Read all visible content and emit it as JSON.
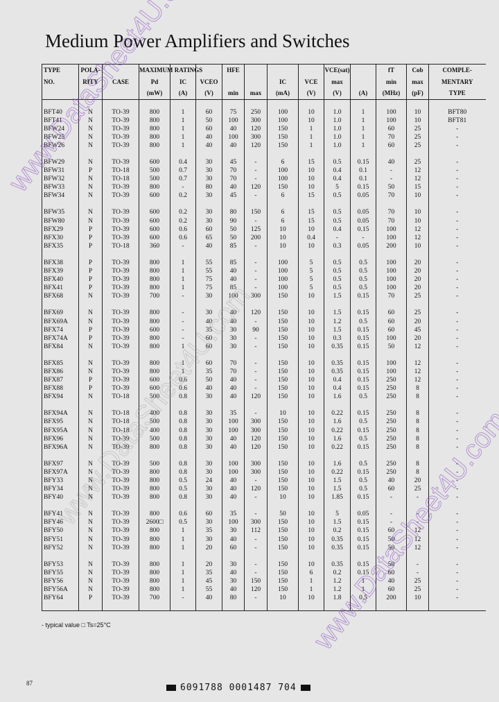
{
  "title": "Medium Power Amplifiers and Switches",
  "header": {
    "row1": [
      "TYPE",
      "POLA-",
      "",
      "MAXIMUM RATINGS",
      "",
      "",
      "HFE",
      "",
      "",
      "",
      "VCE(sat)",
      "",
      "fT",
      "Cob",
      "COMPLE-"
    ],
    "row2": [
      "NO.",
      "RITY",
      "CASE",
      "Pd",
      "IC",
      "VCEO",
      "",
      "",
      "IC",
      "VCE",
      "max",
      "",
      "min",
      "max",
      "MENTARY"
    ],
    "row3": [
      "",
      "",
      "",
      "(mW)",
      "(A)",
      "(V)",
      "min",
      "max",
      "(mA)",
      "(V)",
      "(V)",
      "(A)",
      "(MHz)",
      "(pF)",
      "TYPE"
    ]
  },
  "groups": [
    [
      [
        "BFT40",
        "N",
        "TO-39",
        "800",
        "1",
        "60",
        "75",
        "250",
        "100",
        "10",
        "1.0",
        "1",
        "100",
        "10",
        "BFT80"
      ],
      [
        "BFT41",
        "N",
        "TO-39",
        "800",
        "1",
        "50",
        "100",
        "300",
        "100",
        "10",
        "1.0",
        "1",
        "100",
        "10",
        "BFT81"
      ],
      [
        "BFW24",
        "N",
        "TO-39",
        "800",
        "1",
        "60",
        "40",
        "120",
        "150",
        "1",
        "1.0",
        "1",
        "60",
        "25",
        "-"
      ],
      [
        "BFW25",
        "N",
        "TO-39",
        "800",
        "1",
        "40",
        "100",
        "300",
        "150",
        "1",
        "1.0",
        "1",
        "70",
        "25",
        "-"
      ],
      [
        "BFW26",
        "N",
        "TO-39",
        "800",
        "1",
        "40",
        "40",
        "120",
        "150",
        "1",
        "1.0",
        "1",
        "60",
        "25",
        "-"
      ]
    ],
    [
      [
        "BFW29",
        "N",
        "TO-39",
        "600",
        "0.4",
        "30",
        "45",
        "-",
        "6",
        "15",
        "0.5",
        "0.15",
        "40",
        "25",
        "-"
      ],
      [
        "BFW31",
        "P",
        "TO-18",
        "500",
        "0.7",
        "30",
        "70",
        "-",
        "100",
        "10",
        "0.4",
        "0.1",
        "-",
        "12",
        "-"
      ],
      [
        "BFW32",
        "N",
        "TO-18",
        "500",
        "0.7",
        "30",
        "70",
        "-",
        "100",
        "10",
        "0.4",
        "0.1",
        "-",
        "12",
        "-"
      ],
      [
        "BFW33",
        "N",
        "TO-39",
        "800",
        "-",
        "80",
        "40",
        "120",
        "150",
        "10",
        "5",
        "0.15",
        "50",
        "15",
        "-"
      ],
      [
        "BFW34",
        "N",
        "TO-39",
        "600",
        "0.2",
        "30",
        "45",
        "-",
        "6",
        "15",
        "0.5",
        "0.05",
        "70",
        "10",
        "-"
      ]
    ],
    [
      [
        "BFW35",
        "N",
        "TO-39",
        "600",
        "0.2",
        "30",
        "80",
        "150",
        "6",
        "15",
        "0.5",
        "0.05",
        "70",
        "10",
        "-"
      ],
      [
        "BFW80",
        "N",
        "TO-39",
        "600",
        "0.2",
        "30",
        "90",
        "-",
        "6",
        "15",
        "0.5",
        "0.05",
        "70",
        "10",
        "-"
      ],
      [
        "BFX29",
        "P",
        "TO-39",
        "600",
        "0.6",
        "60",
        "50",
        "125",
        "10",
        "10",
        "0.4",
        "0.15",
        "100",
        "12",
        "-"
      ],
      [
        "BFX30",
        "P",
        "TO-39",
        "600",
        "0.6",
        "65",
        "50",
        "200",
        "10",
        "0.4",
        "-",
        "-",
        "100",
        "12",
        "-"
      ],
      [
        "BFX35",
        "P",
        "TO-18",
        "360",
        "-",
        "40",
        "85",
        "-",
        "10",
        "10",
        "0.3",
        "0.05",
        "200",
        "10",
        "-"
      ]
    ],
    [
      [
        "BFX38",
        "P",
        "TO-39",
        "800",
        "1",
        "55",
        "85",
        "-",
        "100",
        "5",
        "0.5",
        "0.5",
        "100",
        "20",
        "-"
      ],
      [
        "BFX39",
        "P",
        "TO-39",
        "800",
        "1",
        "55",
        "40",
        "-",
        "100",
        "5",
        "0.5",
        "0.5",
        "100",
        "20",
        "-"
      ],
      [
        "BFX40",
        "P",
        "TO-39",
        "800",
        "1",
        "75",
        "40",
        "-",
        "100",
        "5",
        "0.5",
        "0.5",
        "100",
        "20",
        "-"
      ],
      [
        "BFX41",
        "P",
        "TO-39",
        "800",
        "1",
        "75",
        "85",
        "-",
        "100",
        "5",
        "0.5",
        "0.5",
        "100",
        "20",
        "-"
      ],
      [
        "BFX68",
        "N",
        "TO-39",
        "700",
        "-",
        "30",
        "100",
        "300",
        "150",
        "10",
        "1.5",
        "0.15",
        "70",
        "25",
        "-"
      ]
    ],
    [
      [
        "BFX69",
        "N",
        "TO-39",
        "800",
        "-",
        "30",
        "40",
        "120",
        "150",
        "10",
        "1.5",
        "0.15",
        "60",
        "25",
        "-"
      ],
      [
        "BFX69A",
        "N",
        "TO-39",
        "800",
        "-",
        "40",
        "40",
        "-",
        "150",
        "10",
        "1.2",
        "0.5",
        "60",
        "20",
        "-"
      ],
      [
        "BFX74",
        "P",
        "TO-39",
        "600",
        "-",
        "35",
        "30",
        "90",
        "150",
        "10",
        "1.5",
        "0.15",
        "60",
        "45",
        "-"
      ],
      [
        "BFX74A",
        "P",
        "TO-39",
        "800",
        "-",
        "60",
        "30",
        "-",
        "150",
        "10",
        "0.3",
        "0.15",
        "100",
        "20",
        "-"
      ],
      [
        "BFX84",
        "N",
        "TO-39",
        "800",
        "1",
        "60",
        "30",
        "-",
        "150",
        "10",
        "0.35",
        "0.15",
        "50",
        "12",
        "-"
      ]
    ],
    [
      [
        "BFX85",
        "N",
        "TO-39",
        "800",
        "1",
        "60",
        "70",
        "-",
        "150",
        "10",
        "0.35",
        "0.15",
        "100",
        "12",
        "-"
      ],
      [
        "BFX86",
        "N",
        "TO-39",
        "800",
        "1",
        "35",
        "70",
        "-",
        "150",
        "10",
        "0.35",
        "0.15",
        "100",
        "12",
        "-"
      ],
      [
        "BFX87",
        "P",
        "TO-39",
        "600",
        "0.6",
        "50",
        "40",
        "-",
        "150",
        "10",
        "0.4",
        "0.15",
        "250",
        "12",
        "-"
      ],
      [
        "BFX88",
        "P",
        "TO-39",
        "600",
        "0.6",
        "40",
        "40",
        "-",
        "150",
        "10",
        "0.4",
        "0.15",
        "250",
        "8",
        "-"
      ],
      [
        "BFX94",
        "N",
        "TO-18",
        "500",
        "0.8",
        "30",
        "40",
        "120",
        "150",
        "10",
        "1.6",
        "0.5",
        "250",
        "8",
        "-"
      ]
    ],
    [
      [
        "BFX94A",
        "N",
        "TO-18",
        "400",
        "0.8",
        "30",
        "35",
        "-",
        "10",
        "10",
        "0.22",
        "0.15",
        "250",
        "8",
        "-"
      ],
      [
        "BFX95",
        "N",
        "TO-18",
        "500",
        "0.8",
        "30",
        "100",
        "300",
        "150",
        "10",
        "1.6",
        "0.5",
        "250",
        "8",
        "-"
      ],
      [
        "BFX95A",
        "N",
        "TO-18",
        "400",
        "0.8",
        "30",
        "100",
        "300",
        "150",
        "10",
        "0.22",
        "0.15",
        "250",
        "8",
        "-"
      ],
      [
        "BFX96",
        "N",
        "TO-39",
        "500",
        "0.8",
        "30",
        "40",
        "120",
        "150",
        "10",
        "1.6",
        "0.5",
        "250",
        "8",
        "-"
      ],
      [
        "BFX96A",
        "N",
        "TO-39",
        "800",
        "0.8",
        "30",
        "40",
        "120",
        "150",
        "10",
        "0.22",
        "0.15",
        "250",
        "8",
        "-"
      ]
    ],
    [
      [
        "BFX97",
        "N",
        "TO-39",
        "500",
        "0.8",
        "30",
        "100",
        "300",
        "150",
        "10",
        "1.6",
        "0.5",
        "250",
        "8",
        "-"
      ],
      [
        "BFX97A",
        "N",
        "TO-39",
        "800",
        "0.8",
        "30",
        "100",
        "300",
        "150",
        "10",
        "0.22",
        "0.15",
        "250",
        "8",
        "-"
      ],
      [
        "BFY33",
        "N",
        "TO-39",
        "800",
        "0.5",
        "24",
        "40",
        "-",
        "150",
        "10",
        "1.5",
        "0.5",
        "40",
        "20",
        "-"
      ],
      [
        "BFY34",
        "N",
        "TO-39",
        "800",
        "0.5",
        "30",
        "40",
        "120",
        "150",
        "10",
        "1.5",
        "0.5",
        "60",
        "25",
        "-"
      ],
      [
        "BFY40",
        "N",
        "TO-39",
        "800",
        "0.8",
        "30",
        "40",
        "-",
        "10",
        "10",
        "1.85",
        "0.15",
        "-",
        "-",
        "-"
      ]
    ],
    [
      [
        "BFY41",
        "N",
        "TO-39",
        "800",
        "0.6",
        "60",
        "35",
        "-",
        "50",
        "10",
        "5",
        "0.05",
        "-",
        "-",
        "-"
      ],
      [
        "BFY46",
        "N",
        "TO-39",
        "2600□",
        "0.5",
        "30",
        "100",
        "300",
        "150",
        "10",
        "1.5",
        "0.15",
        "-",
        "-",
        "-"
      ],
      [
        "BFY50",
        "N",
        "TO-39",
        "800",
        "1",
        "35",
        "30",
        "112",
        "150",
        "10",
        "0.2",
        "0.15",
        "60",
        "12",
        "-"
      ],
      [
        "BFY51",
        "N",
        "TO-39",
        "800",
        "1",
        "30",
        "40",
        "-",
        "150",
        "10",
        "0.35",
        "0.15",
        "50",
        "12",
        "-"
      ],
      [
        "BFY52",
        "N",
        "TO-39",
        "800",
        "1",
        "20",
        "60",
        "-",
        "150",
        "10",
        "0.35",
        "0.15",
        "50",
        "12",
        "-"
      ]
    ],
    [
      [
        "BFY53",
        "N",
        "TO-39",
        "800",
        "1",
        "20",
        "30",
        "-",
        "150",
        "10",
        "0.35",
        "0.15",
        "50",
        "-",
        "-"
      ],
      [
        "BFY55",
        "N",
        "TO-39",
        "800",
        "1",
        "35",
        "40",
        "-",
        "150",
        "6",
        "0.2",
        "0.15",
        "60",
        "-",
        "-"
      ],
      [
        "BFY56",
        "N",
        "TO-39",
        "800",
        "1",
        "45",
        "30",
        "150",
        "150",
        "1",
        "1.2",
        "1",
        "40",
        "25",
        "-"
      ],
      [
        "BFY56A",
        "N",
        "TO-39",
        "800",
        "1",
        "55",
        "40",
        "120",
        "150",
        "1",
        "1.2",
        "1",
        "60",
        "25",
        "-"
      ],
      [
        "BFY64",
        "P",
        "TO-39",
        "700",
        "-",
        "40",
        "80",
        "-",
        "10",
        "10",
        "1.8",
        "0.5",
        "200",
        "10",
        "-"
      ]
    ]
  ],
  "footnote": "- typical value    □ Ts=25°C",
  "page_number": "87",
  "barcode_text": "6091788 0001487 704",
  "watermark": "www.DataSheet4U.com",
  "watermark_color": "#8a4fc0"
}
